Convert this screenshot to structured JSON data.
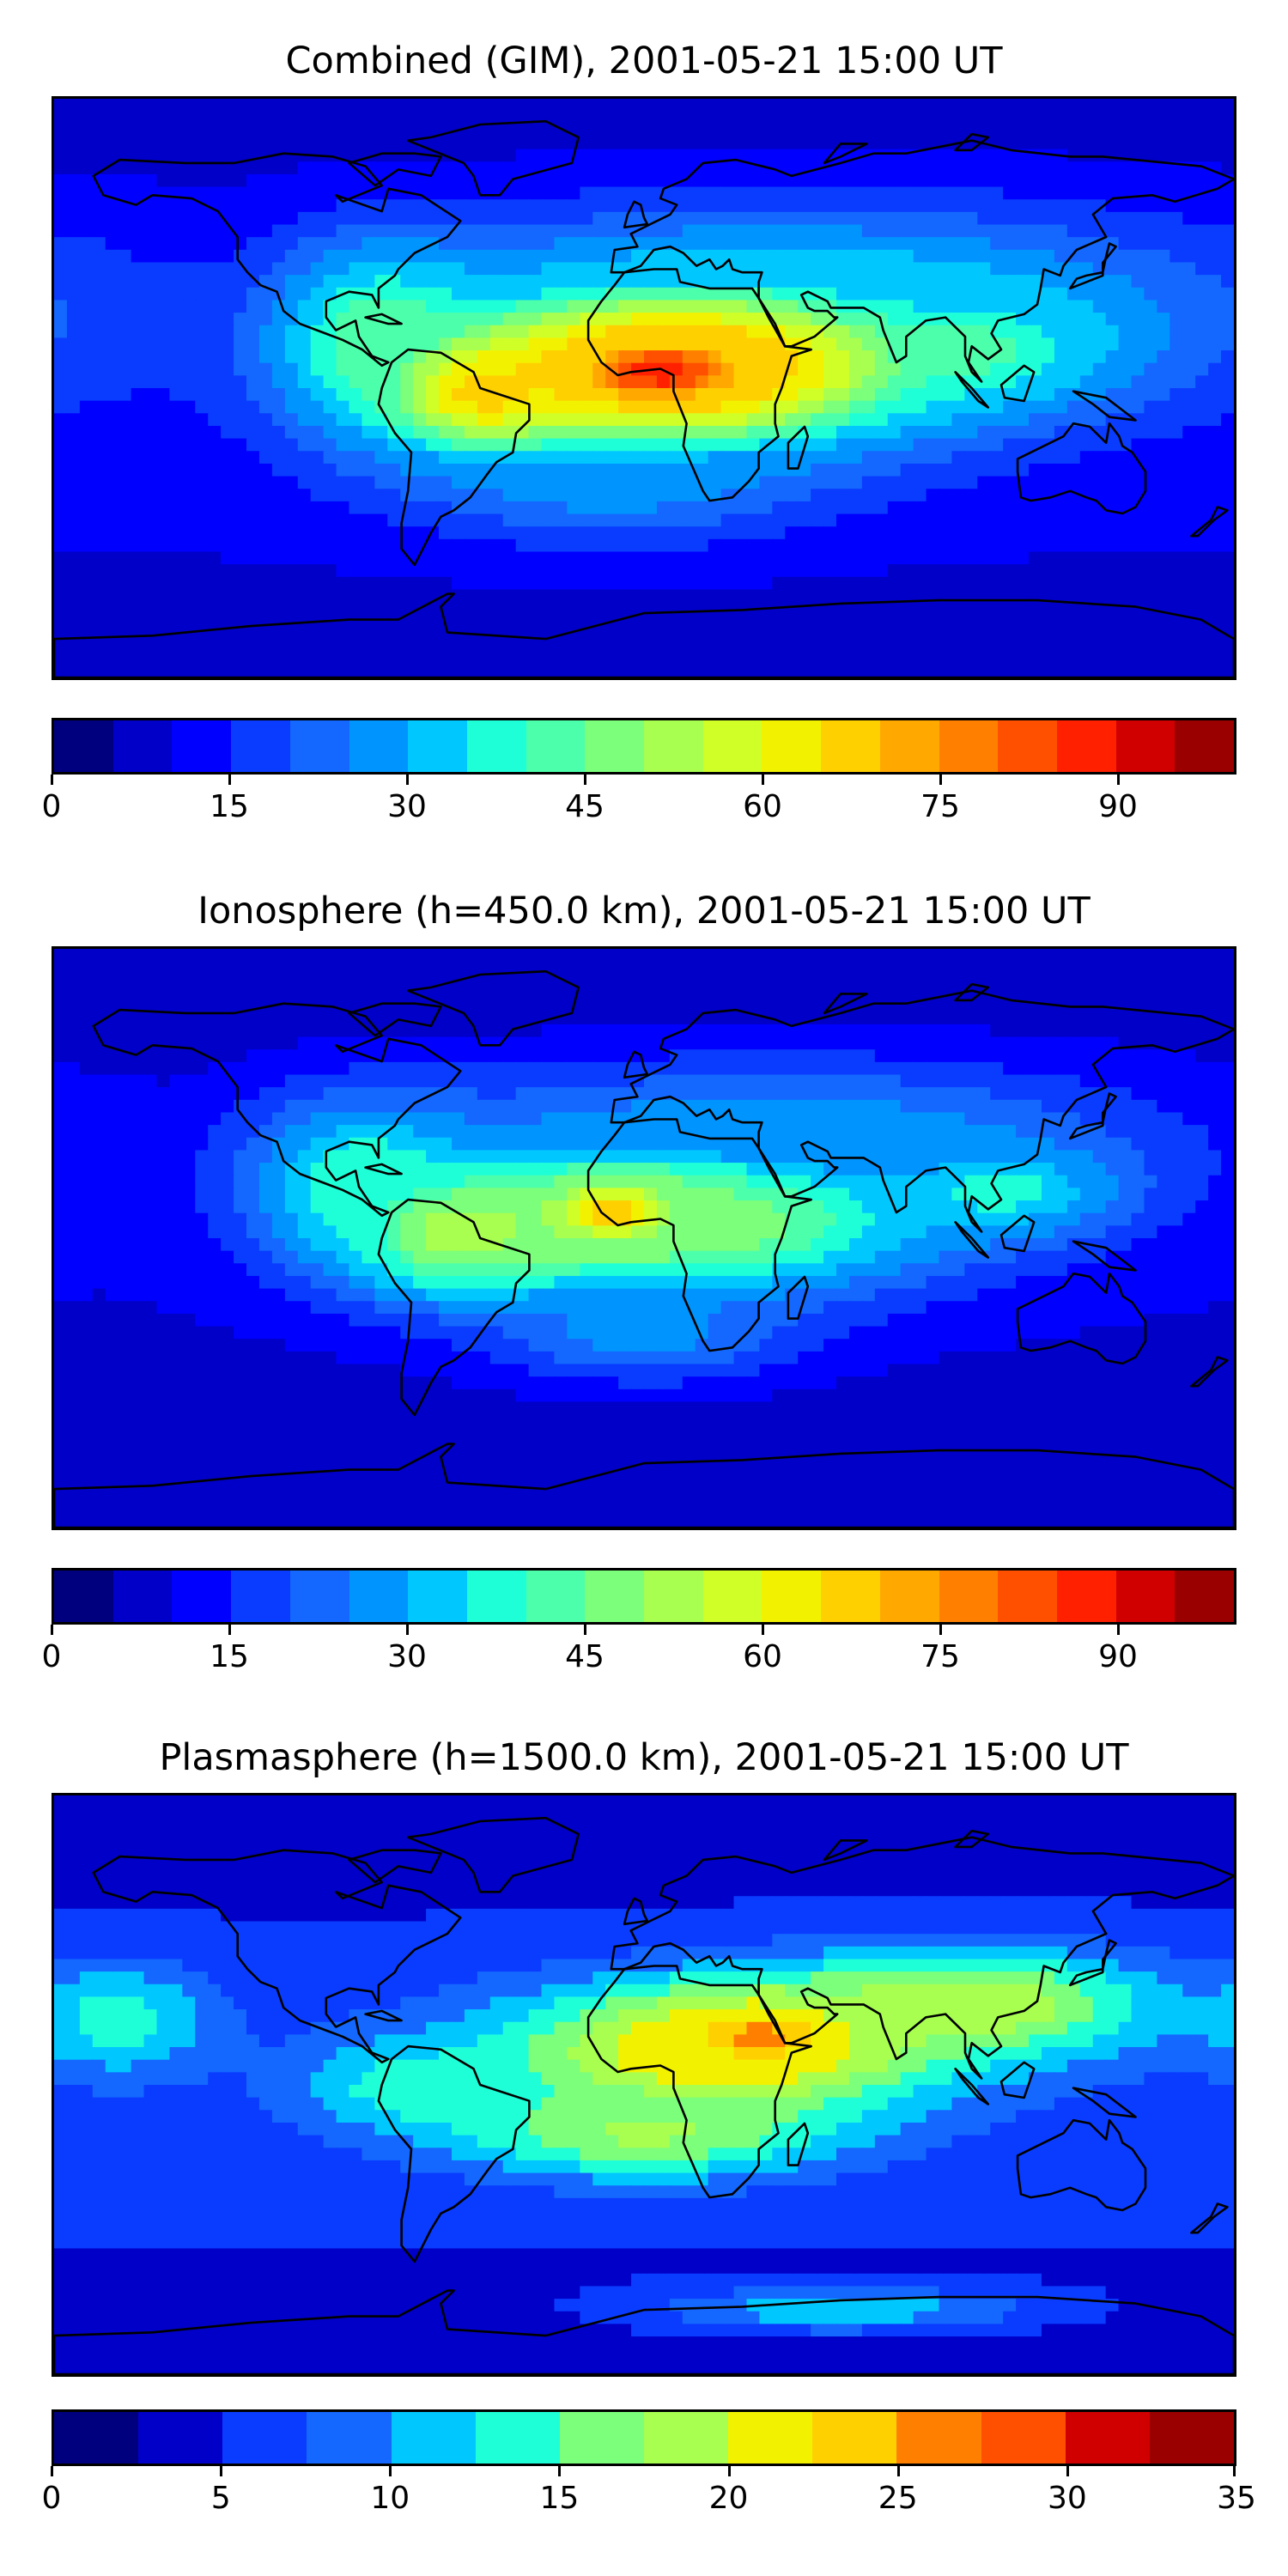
{
  "panels": [
    {
      "title": "Combined (GIM), 2001-05-21 15:00 UT",
      "colorbar": {
        "min": 0,
        "max": 100,
        "step": 5,
        "ticks": [
          "0",
          "15",
          "30",
          "45",
          "60",
          "75",
          "90"
        ],
        "tick_values": [
          0,
          15,
          30,
          45,
          60,
          75,
          90
        ]
      },
      "background_value": 12,
      "blobs": [
        {
          "lon": 5,
          "lat": 5,
          "value": 88,
          "sx": 30,
          "sy": 11
        },
        {
          "lon": -50,
          "lat": -2,
          "value": 65,
          "sx": 20,
          "sy": 12
        },
        {
          "lon": 15,
          "lat": 8,
          "value": 70,
          "sx": 55,
          "sy": 18
        },
        {
          "lon": -80,
          "lat": 15,
          "value": 45,
          "sx": 22,
          "sy": 20
        },
        {
          "lon": 100,
          "lat": 12,
          "value": 42,
          "sx": 30,
          "sy": 12
        },
        {
          "lon": 50,
          "lat": 25,
          "value": 35,
          "sx": 90,
          "sy": 22
        },
        {
          "lon": -10,
          "lat": -25,
          "value": 30,
          "sx": 45,
          "sy": 15
        },
        {
          "lon": 150,
          "lat": -30,
          "value": 10,
          "sx": 25,
          "sy": 12
        }
      ]
    },
    {
      "title": "Ionosphere  (h=450.0 km), 2001-05-21 15:00 UT",
      "colorbar": {
        "min": 0,
        "max": 100,
        "step": 5,
        "ticks": [
          "0",
          "15",
          "30",
          "45",
          "60",
          "75",
          "90"
        ],
        "tick_values": [
          0,
          15,
          30,
          45,
          60,
          75,
          90
        ]
      },
      "background_value": 10,
      "blobs": [
        {
          "lon": -10,
          "lat": 8,
          "value": 70,
          "sx": 20,
          "sy": 9
        },
        {
          "lon": -55,
          "lat": 2,
          "value": 55,
          "sx": 25,
          "sy": 14
        },
        {
          "lon": 15,
          "lat": 5,
          "value": 50,
          "sx": 55,
          "sy": 17
        },
        {
          "lon": -85,
          "lat": 18,
          "value": 40,
          "sx": 25,
          "sy": 18
        },
        {
          "lon": 110,
          "lat": 15,
          "value": 38,
          "sx": 25,
          "sy": 10
        },
        {
          "lon": 40,
          "lat": 30,
          "value": 30,
          "sx": 80,
          "sy": 18
        },
        {
          "lon": 0,
          "lat": -30,
          "value": 28,
          "sx": 30,
          "sy": 10
        }
      ]
    },
    {
      "title": "Plasmasphere (h=1500.0 km), 2001-05-21 15:00 UT",
      "colorbar": {
        "min": 0,
        "max": 35,
        "step": 2.5,
        "ticks": [
          "0",
          "5",
          "10",
          "15",
          "20",
          "25",
          "30",
          "35"
        ],
        "tick_values": [
          0,
          5,
          10,
          15,
          20,
          25,
          30,
          35
        ]
      },
      "background_value": 6,
      "blobs": [
        {
          "lon": 35,
          "lat": 15,
          "value": 26,
          "sx": 25,
          "sy": 10
        },
        {
          "lon": 20,
          "lat": 10,
          "value": 22,
          "sx": 50,
          "sy": 15
        },
        {
          "lon": 100,
          "lat": 25,
          "value": 20,
          "sx": 40,
          "sy": 12
        },
        {
          "lon": -70,
          "lat": 0,
          "value": 14,
          "sx": 25,
          "sy": 10
        },
        {
          "lon": -160,
          "lat": 20,
          "value": 14,
          "sx": 20,
          "sy": 12
        },
        {
          "lon": 0,
          "lat": -15,
          "value": 18,
          "sx": 40,
          "sy": 10
        },
        {
          "lon": 60,
          "lat": -70,
          "value": 12,
          "sx": 40,
          "sy": 5
        }
      ]
    }
  ],
  "colormap": [
    "#00007f",
    "#0000c8",
    "#0000ff",
    "#0a3cff",
    "#1468ff",
    "#0094ff",
    "#00c8ff",
    "#1effd8",
    "#4cffaa",
    "#7cff7a",
    "#a8ff50",
    "#d0ff28",
    "#f2f200",
    "#ffd000",
    "#ffa800",
    "#ff8000",
    "#ff5000",
    "#ff2000",
    "#d00000",
    "#9a0000"
  ],
  "coast_color": "#000000",
  "icons": {
    "map": "world-map-icon"
  }
}
